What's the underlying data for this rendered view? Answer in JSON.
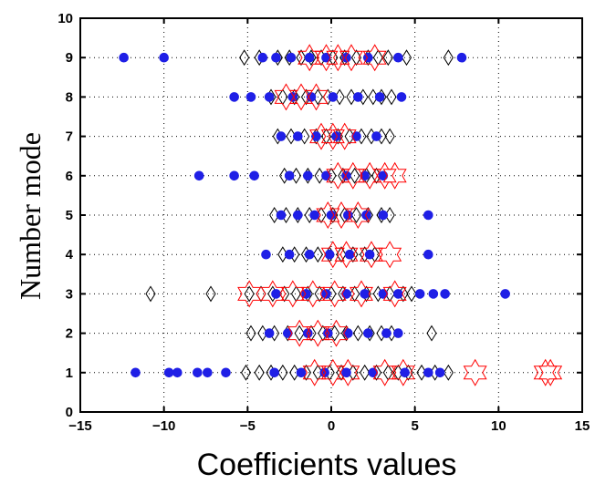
{
  "chart_data": {
    "type": "scatter",
    "title": "",
    "xlabel": "Coefficients values",
    "ylabel": "Number mode",
    "xlim": [
      -15,
      15
    ],
    "ylim": [
      0,
      10
    ],
    "xticks": [
      -15,
      -10,
      -5,
      0,
      5,
      10,
      15
    ],
    "yticks": [
      0,
      1,
      2,
      3,
      4,
      5,
      6,
      7,
      8,
      9,
      10
    ],
    "grid": "dotted",
    "legend": "none",
    "series": [
      {
        "marker": "diamond",
        "color": "#000000",
        "points": [
          [
            -5.2,
            9
          ],
          [
            -4.3,
            9
          ],
          [
            -3.2,
            9
          ],
          [
            -2.5,
            9
          ],
          [
            -1.8,
            9
          ],
          [
            -1.2,
            9
          ],
          [
            -0.6,
            9
          ],
          [
            0.1,
            9
          ],
          [
            0.8,
            9
          ],
          [
            1.5,
            9
          ],
          [
            2.2,
            9
          ],
          [
            2.8,
            9
          ],
          [
            3.4,
            9
          ],
          [
            4.5,
            9
          ],
          [
            7.0,
            9
          ],
          [
            -3.6,
            8
          ],
          [
            -2.9,
            8
          ],
          [
            -2.2,
            8
          ],
          [
            -1.5,
            8
          ],
          [
            -0.8,
            8
          ],
          [
            -0.2,
            8
          ],
          [
            0.5,
            8
          ],
          [
            1.2,
            8
          ],
          [
            1.9,
            8
          ],
          [
            2.5,
            8
          ],
          [
            3.0,
            8
          ],
          [
            3.6,
            8
          ],
          [
            -3.2,
            7
          ],
          [
            -2.4,
            7
          ],
          [
            -1.6,
            7
          ],
          [
            -0.9,
            7
          ],
          [
            -0.3,
            7
          ],
          [
            0.4,
            7
          ],
          [
            1.1,
            7
          ],
          [
            1.8,
            7
          ],
          [
            2.4,
            7
          ],
          [
            3.0,
            7
          ],
          [
            3.5,
            7
          ],
          [
            -2.8,
            6
          ],
          [
            -2.1,
            6
          ],
          [
            -1.4,
            6
          ],
          [
            -0.7,
            6
          ],
          [
            0.0,
            6
          ],
          [
            0.7,
            6
          ],
          [
            1.4,
            6
          ],
          [
            2.1,
            6
          ],
          [
            2.7,
            6
          ],
          [
            -3.4,
            5
          ],
          [
            -2.7,
            5
          ],
          [
            -2.0,
            5
          ],
          [
            -1.3,
            5
          ],
          [
            -0.6,
            5
          ],
          [
            0.1,
            5
          ],
          [
            0.8,
            5
          ],
          [
            1.5,
            5
          ],
          [
            2.2,
            5
          ],
          [
            3.0,
            5
          ],
          [
            3.5,
            5
          ],
          [
            -2.9,
            4
          ],
          [
            -2.2,
            4
          ],
          [
            -1.5,
            4
          ],
          [
            -0.8,
            4
          ],
          [
            -0.1,
            4
          ],
          [
            0.6,
            4
          ],
          [
            1.3,
            4
          ],
          [
            2.0,
            4
          ],
          [
            2.6,
            4
          ],
          [
            -10.8,
            3
          ],
          [
            -7.2,
            3
          ],
          [
            -4.9,
            3
          ],
          [
            -4.2,
            3
          ],
          [
            -3.5,
            3
          ],
          [
            -2.8,
            3
          ],
          [
            -2.1,
            3
          ],
          [
            -1.4,
            3
          ],
          [
            -0.7,
            3
          ],
          [
            0.0,
            3
          ],
          [
            0.7,
            3
          ],
          [
            1.4,
            3
          ],
          [
            2.1,
            3
          ],
          [
            2.8,
            3
          ],
          [
            3.5,
            3
          ],
          [
            4.3,
            3
          ],
          [
            4.8,
            3
          ],
          [
            -4.8,
            2
          ],
          [
            -4.1,
            2
          ],
          [
            -3.4,
            2
          ],
          [
            -2.6,
            2
          ],
          [
            -1.9,
            2
          ],
          [
            -1.2,
            2
          ],
          [
            -0.5,
            2
          ],
          [
            0.2,
            2
          ],
          [
            0.9,
            2
          ],
          [
            1.6,
            2
          ],
          [
            2.3,
            2
          ],
          [
            3.0,
            2
          ],
          [
            3.6,
            2
          ],
          [
            6.0,
            2
          ],
          [
            -5.1,
            1
          ],
          [
            -4.3,
            1
          ],
          [
            -3.6,
            1
          ],
          [
            -2.9,
            1
          ],
          [
            -2.2,
            1
          ],
          [
            -1.5,
            1
          ],
          [
            -0.8,
            1
          ],
          [
            -0.1,
            1
          ],
          [
            0.6,
            1
          ],
          [
            1.3,
            1
          ],
          [
            2.0,
            1
          ],
          [
            2.7,
            1
          ],
          [
            3.4,
            1
          ],
          [
            4.0,
            1
          ],
          [
            4.6,
            1
          ],
          [
            5.4,
            1
          ],
          [
            6.2,
            1
          ],
          [
            7.0,
            1
          ]
        ]
      },
      {
        "marker": "circle",
        "color": "#1f1fe6",
        "points": [
          [
            -12.4,
            9
          ],
          [
            -10.0,
            9
          ],
          [
            -4.1,
            9
          ],
          [
            -3.3,
            9
          ],
          [
            -2.4,
            9
          ],
          [
            -1.3,
            9
          ],
          [
            -0.3,
            9
          ],
          [
            0.9,
            9
          ],
          [
            2.2,
            9
          ],
          [
            4.0,
            9
          ],
          [
            7.8,
            9
          ],
          [
            -5.8,
            8
          ],
          [
            -4.8,
            8
          ],
          [
            -3.7,
            8
          ],
          [
            -2.3,
            8
          ],
          [
            -1.2,
            8
          ],
          [
            0.1,
            8
          ],
          [
            1.6,
            8
          ],
          [
            2.9,
            8
          ],
          [
            4.2,
            8
          ],
          [
            -3.0,
            7
          ],
          [
            -2.0,
            7
          ],
          [
            -0.9,
            7
          ],
          [
            0.3,
            7
          ],
          [
            1.5,
            7
          ],
          [
            2.7,
            7
          ],
          [
            -7.9,
            6
          ],
          [
            -5.8,
            6
          ],
          [
            -4.6,
            6
          ],
          [
            -2.5,
            6
          ],
          [
            -1.4,
            6
          ],
          [
            -0.3,
            6
          ],
          [
            0.9,
            6
          ],
          [
            2.0,
            6
          ],
          [
            3.1,
            6
          ],
          [
            -3.0,
            5
          ],
          [
            -2.0,
            5
          ],
          [
            -1.0,
            5
          ],
          [
            0.0,
            5
          ],
          [
            1.0,
            5
          ],
          [
            2.1,
            5
          ],
          [
            3.1,
            5
          ],
          [
            5.8,
            5
          ],
          [
            -3.9,
            4
          ],
          [
            -2.5,
            4
          ],
          [
            -1.3,
            4
          ],
          [
            -0.1,
            4
          ],
          [
            1.1,
            4
          ],
          [
            2.3,
            4
          ],
          [
            5.8,
            4
          ],
          [
            -3.3,
            3
          ],
          [
            -1.5,
            3
          ],
          [
            -0.3,
            3
          ],
          [
            0.9,
            3
          ],
          [
            2.0,
            3
          ],
          [
            3.1,
            3
          ],
          [
            4.0,
            3
          ],
          [
            5.3,
            3
          ],
          [
            6.1,
            3
          ],
          [
            6.8,
            3
          ],
          [
            10.4,
            3
          ],
          [
            -3.7,
            2
          ],
          [
            -2.6,
            2
          ],
          [
            -1.4,
            2
          ],
          [
            -0.2,
            2
          ],
          [
            1.0,
            2
          ],
          [
            2.2,
            2
          ],
          [
            3.3,
            2
          ],
          [
            4.0,
            2
          ],
          [
            -11.7,
            1
          ],
          [
            -9.7,
            1
          ],
          [
            -9.2,
            1
          ],
          [
            -8.0,
            1
          ],
          [
            -7.4,
            1
          ],
          [
            -6.3,
            1
          ],
          [
            -3.4,
            1
          ],
          [
            -1.8,
            1
          ],
          [
            -0.4,
            1
          ],
          [
            0.9,
            1
          ],
          [
            2.5,
            1
          ],
          [
            4.4,
            1
          ],
          [
            5.8,
            1
          ],
          [
            6.5,
            1
          ]
        ]
      },
      {
        "marker": "hexagram",
        "color": "#ff0000",
        "points": [
          [
            -1.3,
            9
          ],
          [
            -0.3,
            9
          ],
          [
            0.4,
            9
          ],
          [
            1.2,
            9
          ],
          [
            2.6,
            9
          ],
          [
            -2.7,
            8
          ],
          [
            -1.8,
            8
          ],
          [
            -0.9,
            8
          ],
          [
            -0.6,
            7
          ],
          [
            0.1,
            7
          ],
          [
            0.8,
            7
          ],
          [
            0.4,
            6
          ],
          [
            1.3,
            6
          ],
          [
            2.3,
            6
          ],
          [
            3.2,
            6
          ],
          [
            3.8,
            6
          ],
          [
            -0.2,
            5
          ],
          [
            0.6,
            5
          ],
          [
            1.6,
            5
          ],
          [
            0.1,
            4
          ],
          [
            0.9,
            4
          ],
          [
            2.4,
            4
          ],
          [
            3.5,
            4
          ],
          [
            -4.9,
            3
          ],
          [
            -3.5,
            3
          ],
          [
            -2.3,
            3
          ],
          [
            -1.1,
            3
          ],
          [
            0.2,
            3
          ],
          [
            1.8,
            3
          ],
          [
            3.8,
            3
          ],
          [
            -1.9,
            2
          ],
          [
            -0.8,
            2
          ],
          [
            0.3,
            2
          ],
          [
            -1.0,
            1
          ],
          [
            0.1,
            1
          ],
          [
            1.0,
            1
          ],
          [
            3.2,
            1
          ],
          [
            4.3,
            1
          ],
          [
            8.6,
            1
          ],
          [
            12.8,
            1
          ],
          [
            13.1,
            1
          ]
        ]
      }
    ]
  }
}
